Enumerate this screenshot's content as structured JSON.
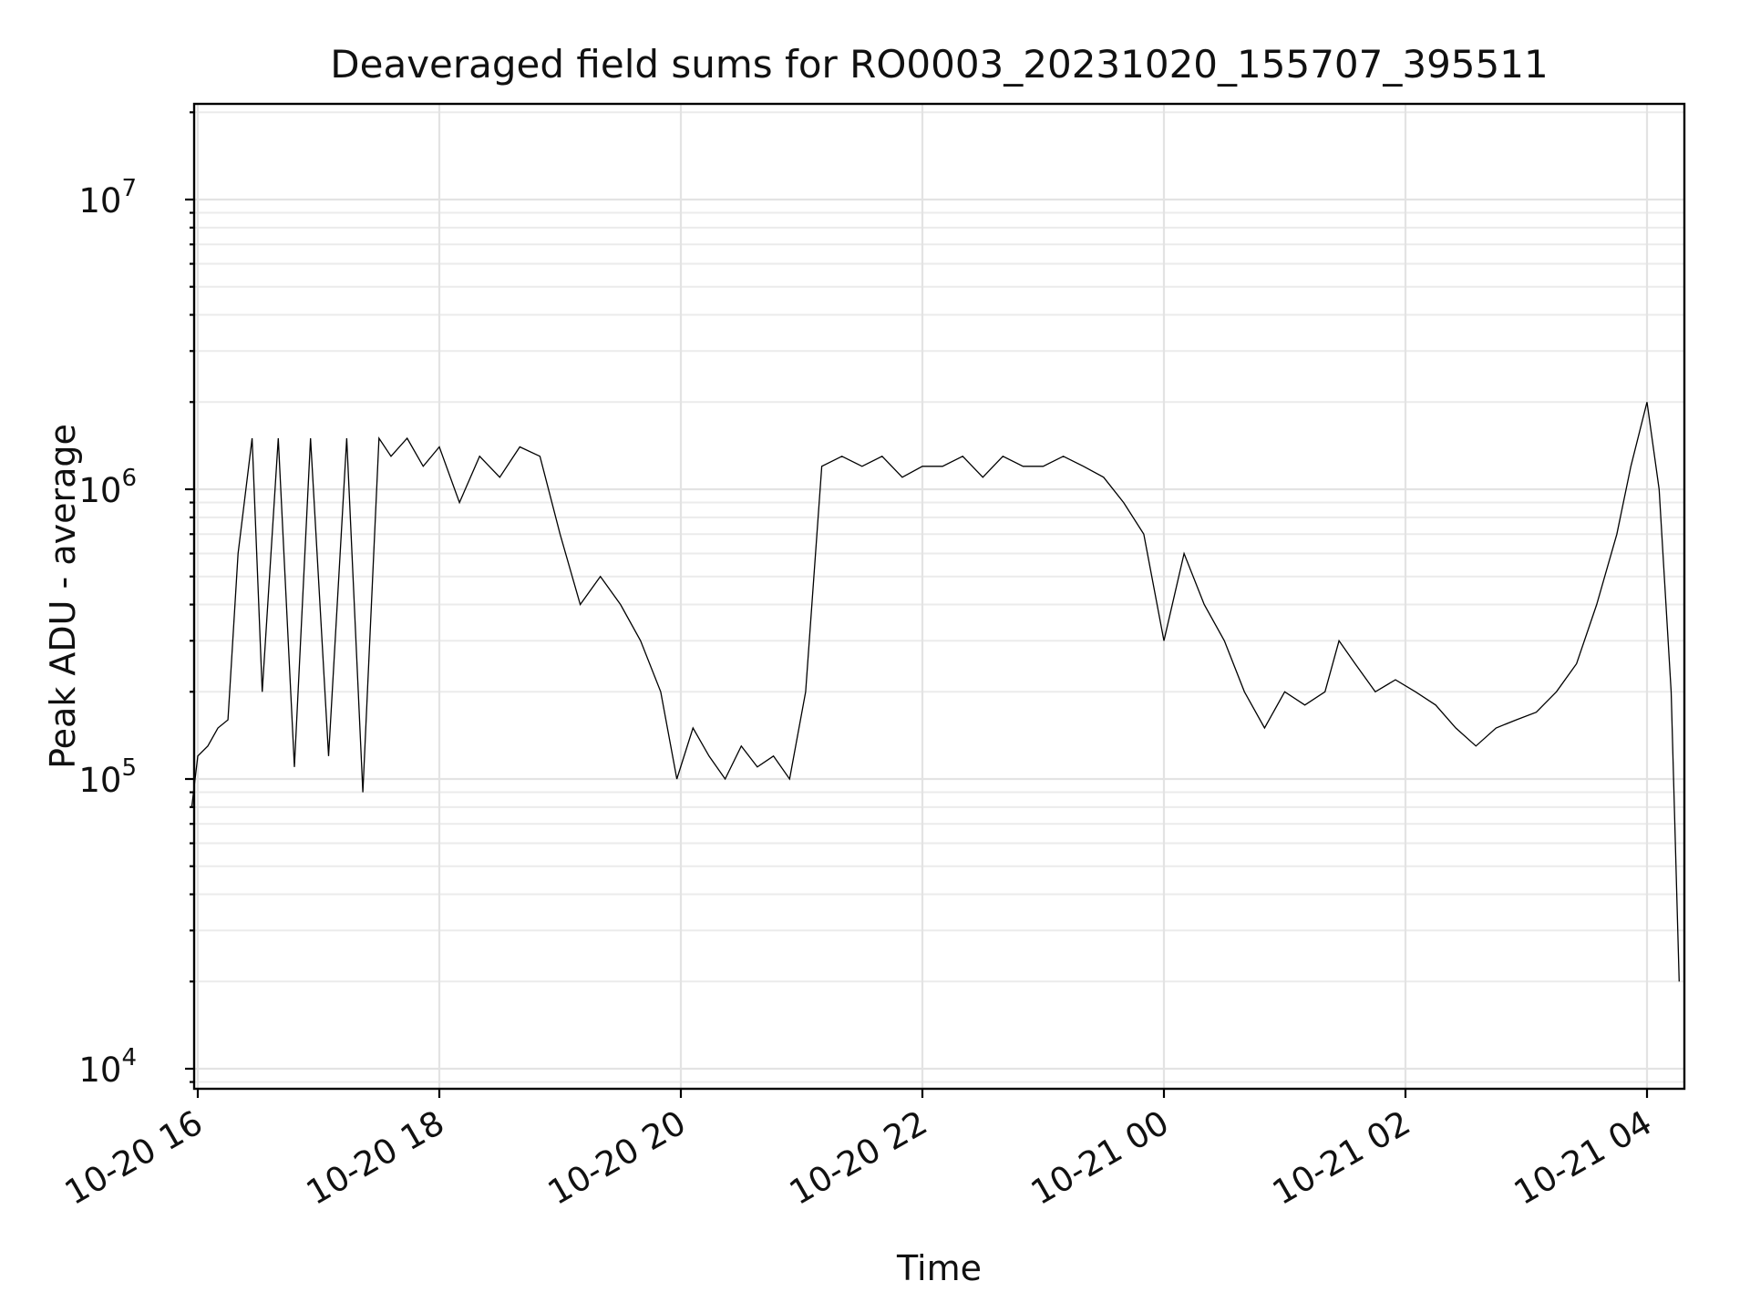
{
  "chart_data": {
    "type": "line",
    "title": "Deaveraged field sums for RO0003_20231020_155707_395511",
    "xlabel": "Time",
    "ylabel": "Peak ADU - average",
    "x_ticks": [
      "10-20 16",
      "10-20 18",
      "10-20 20",
      "10-20 22",
      "10-21 00",
      "10-21 02",
      "10-21 04"
    ],
    "y_ticks": [
      {
        "base": "10",
        "exp": "4"
      },
      {
        "base": "10",
        "exp": "5"
      },
      {
        "base": "10",
        "exp": "6"
      },
      {
        "base": "10",
        "exp": "7"
      }
    ],
    "y_scale": "log",
    "x_range": [
      "2023-10-20 15:57",
      "2023-10-21 04:17"
    ],
    "ylim": [
      9000,
      21000000
    ],
    "grid": true,
    "line_color": "#000000",
    "series": [
      {
        "x": [
          "2023-10-20 15:57",
          "2023-10-20 16:00",
          "2023-10-20 16:05",
          "2023-10-20 16:10",
          "2023-10-20 16:15",
          "2023-10-20 16:20",
          "2023-10-20 16:27",
          "2023-10-20 16:32",
          "2023-10-20 16:40",
          "2023-10-20 16:48",
          "2023-10-20 16:56",
          "2023-10-20 17:05",
          "2023-10-20 17:14",
          "2023-10-20 17:22",
          "2023-10-20 17:30",
          "2023-10-20 17:36",
          "2023-10-20 17:44",
          "2023-10-20 17:52",
          "2023-10-20 18:00",
          "2023-10-20 18:10",
          "2023-10-20 18:20",
          "2023-10-20 18:30",
          "2023-10-20 18:40",
          "2023-10-20 18:50",
          "2023-10-20 19:00",
          "2023-10-20 19:10",
          "2023-10-20 19:20",
          "2023-10-20 19:30",
          "2023-10-20 19:40",
          "2023-10-20 19:50",
          "2023-10-20 19:58",
          "2023-10-20 20:06",
          "2023-10-20 20:14",
          "2023-10-20 20:22",
          "2023-10-20 20:30",
          "2023-10-20 20:38",
          "2023-10-20 20:46",
          "2023-10-20 20:54",
          "2023-10-20 21:02",
          "2023-10-20 21:10",
          "2023-10-20 21:20",
          "2023-10-20 21:30",
          "2023-10-20 21:40",
          "2023-10-20 21:50",
          "2023-10-20 22:00",
          "2023-10-20 22:10",
          "2023-10-20 22:20",
          "2023-10-20 22:30",
          "2023-10-20 22:40",
          "2023-10-20 22:50",
          "2023-10-20 23:00",
          "2023-10-20 23:10",
          "2023-10-20 23:20",
          "2023-10-20 23:30",
          "2023-10-20 23:40",
          "2023-10-20 23:50",
          "2023-10-21 00:00",
          "2023-10-21 00:10",
          "2023-10-21 00:20",
          "2023-10-21 00:30",
          "2023-10-21 00:40",
          "2023-10-21 00:50",
          "2023-10-21 01:00",
          "2023-10-21 01:10",
          "2023-10-21 01:20",
          "2023-10-21 01:27",
          "2023-10-21 01:35",
          "2023-10-21 01:45",
          "2023-10-21 01:55",
          "2023-10-21 02:05",
          "2023-10-21 02:15",
          "2023-10-21 02:25",
          "2023-10-21 02:35",
          "2023-10-21 02:45",
          "2023-10-21 02:55",
          "2023-10-21 03:05",
          "2023-10-21 03:15",
          "2023-10-21 03:25",
          "2023-10-21 03:35",
          "2023-10-21 03:45",
          "2023-10-21 03:52",
          "2023-10-21 04:00",
          "2023-10-21 04:06",
          "2023-10-21 04:12",
          "2023-10-21 04:16"
        ],
        "values": [
          80000,
          120000,
          130000,
          150000,
          160000,
          600000,
          1500000,
          200000,
          1500000,
          110000,
          1500000,
          120000,
          1500000,
          90000,
          1500000,
          1300000,
          1500000,
          1200000,
          1400000,
          900000,
          1300000,
          1100000,
          1400000,
          1300000,
          700000,
          400000,
          500000,
          400000,
          300000,
          200000,
          100000,
          150000,
          120000,
          100000,
          130000,
          110000,
          120000,
          100000,
          200000,
          1200000,
          1300000,
          1200000,
          1300000,
          1100000,
          1200000,
          1200000,
          1300000,
          1100000,
          1300000,
          1200000,
          1200000,
          1300000,
          1200000,
          1100000,
          900000,
          700000,
          300000,
          600000,
          400000,
          300000,
          200000,
          150000,
          200000,
          180000,
          200000,
          300000,
          250000,
          200000,
          220000,
          200000,
          180000,
          150000,
          130000,
          150000,
          160000,
          170000,
          200000,
          250000,
          400000,
          700000,
          1200000,
          2000000,
          1000000,
          200000,
          20000
        ]
      }
    ]
  }
}
